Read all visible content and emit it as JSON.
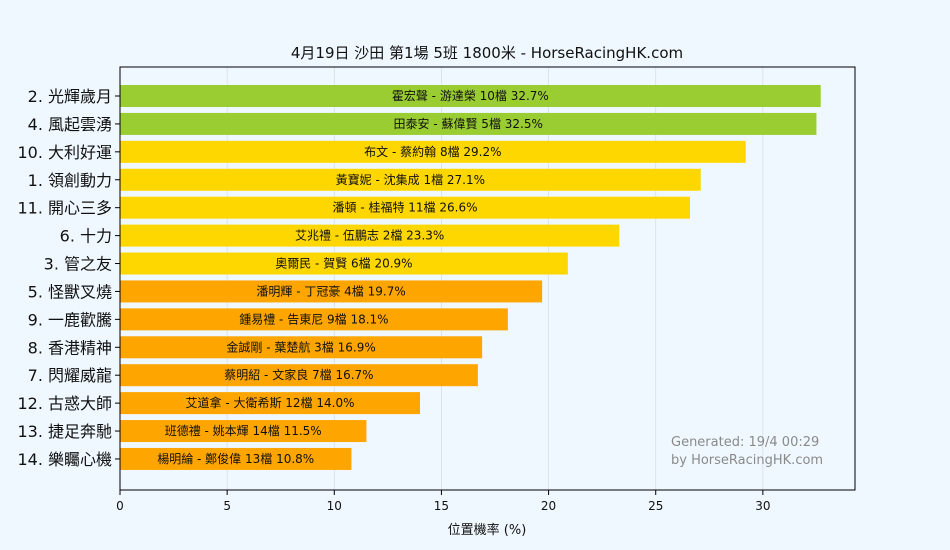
{
  "chart_data": {
    "type": "bar",
    "orientation": "horizontal",
    "title": "4月19日  沙田  第1場  5班  1800米 - HorseRacingHK.com",
    "xlabel": "位置機率 (%)",
    "ylabel": "",
    "xlim": [
      0,
      34.3
    ],
    "xticks": [
      0,
      5,
      10,
      15,
      20,
      25,
      30
    ],
    "grid": true,
    "categories": [
      "2. 光輝歲月",
      "4. 風起雲湧",
      "10. 大利好運",
      "1. 領創動力",
      "11. 開心三多",
      "6. 十力",
      "3. 管之友",
      "5. 怪獸叉燒",
      "9. 一鹿歡騰",
      "8. 香港精神",
      "7. 閃耀威龍",
      "12. 古惑大師",
      "13. 捷足奔馳",
      "14. 樂矚心機"
    ],
    "values": [
      32.7,
      32.5,
      29.2,
      27.1,
      26.6,
      23.3,
      20.9,
      19.7,
      18.1,
      16.9,
      16.7,
      14.0,
      11.5,
      10.8
    ],
    "bar_labels": [
      "霍宏聲 - 游達榮 10檔  32.7%",
      "田泰安 - 蘇偉賢 5檔  32.5%",
      "布文 - 蔡約翰 8檔  29.2%",
      "黃寶妮 - 沈集成 1檔  27.1%",
      "潘頓 - 桂福特 11檔  26.6%",
      "艾兆禮 - 伍鵬志 2檔  23.3%",
      "奧爾民 - 賀賢 6檔  20.9%",
      "潘明輝 - 丁冠豪 4檔  19.7%",
      "鍾易禮 - 告東尼 9檔  18.1%",
      "金誠剛 - 葉楚航 3檔  16.9%",
      "蔡明紹 - 文家良 7檔  16.7%",
      "艾道拿 - 大衛希斯 12檔  14.0%",
      "班德禮 - 姚本輝 14檔  11.5%",
      "楊明綸 - 鄭俊偉 13檔  10.8%"
    ],
    "bar_color_groups": [
      "green",
      "green",
      "yellow",
      "yellow",
      "yellow",
      "yellow",
      "yellow",
      "orange",
      "orange",
      "orange",
      "orange",
      "orange",
      "orange",
      "orange"
    ]
  },
  "colors": {
    "green": "#9acd32",
    "yellow": "#ffd700",
    "orange": "#ffa500",
    "background": "#f0f8ff",
    "axes": "#000000",
    "grid": "#d5dde8",
    "footer_text": "#8a8a8a"
  },
  "footer": {
    "line1": "Generated: 19/4 00:29",
    "line2": "by HorseRacingHK.com"
  }
}
